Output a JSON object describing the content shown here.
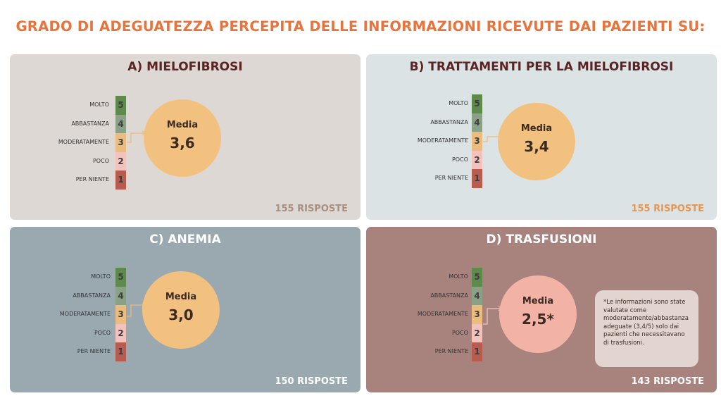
{
  "title": "GRADO DI ADEGUATEZZA PERCEPITA DELLE INFORMAZIONI RICEVUTE DAI PAZIENTI SU:",
  "scale_labels": [
    "MOLTO",
    "ABBASTANZA",
    "MODERATAMENTE",
    "POCO",
    "PER NIENTE"
  ],
  "scale_values": [
    "5",
    "4",
    "3",
    "2",
    "1"
  ],
  "colors": {
    "title": "#e8743b",
    "scale_5": "#5e8a4c",
    "scale_4": "#8aa187",
    "scale_3": "#ebbc7e",
    "scale_2": "#f3c2bc",
    "scale_1": "#b85c4f",
    "circle_default": "#f2c17f",
    "circle_trasfusioni": "#f3b2a6"
  },
  "panels": {
    "a": {
      "title": "A) MIELOFIBROSI",
      "media_label": "Media",
      "media_value": "3,6",
      "responses": "155 RISPOSTE"
    },
    "b": {
      "title": "B) TRATTAMENTI PER LA MIELOFIBROSI",
      "media_label": "Media",
      "media_value": "3,4",
      "responses": "155 RISPOSTE"
    },
    "c": {
      "title": "C) ANEMIA",
      "media_label": "Media",
      "media_value": "3,0",
      "responses": "150 RISPOSTE"
    },
    "d": {
      "title": "D) TRASFUSIONI",
      "media_label": "Media",
      "media_value": "2,5*",
      "responses": "143 RISPOSTE",
      "note": "*Le informazioni sono state valutate come moderatamente/abbastanza adeguate (3,4/5) solo dai pazienti che necessitavano di trasfusioni."
    }
  }
}
